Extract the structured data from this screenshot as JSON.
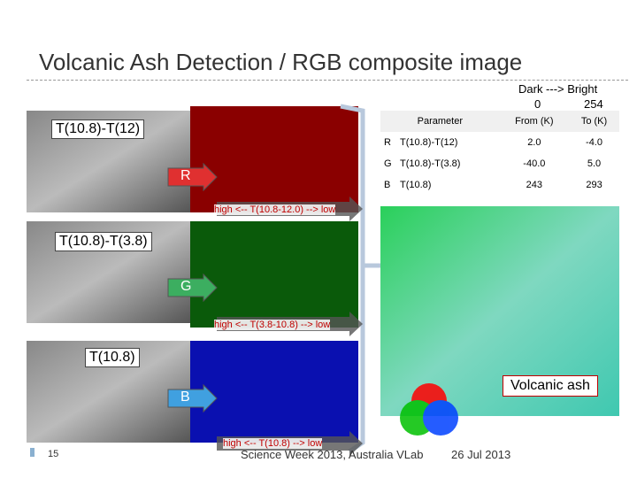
{
  "title": "Volcanic Ash Detection / RGB composite image",
  "scale": {
    "caption": "Dark ---> Bright",
    "min": "0",
    "max": "254"
  },
  "channels": [
    {
      "label": "T(10.8)-T(12)",
      "arrow": "R",
      "caption": "high <-- T(10.8-12.0) --> low"
    },
    {
      "label": "T(10.8)-T(3.8)",
      "arrow": "G",
      "caption": "high <-- T(3.8-10.8) --> low"
    },
    {
      "label": "T(10.8)",
      "arrow": "B",
      "caption": "high <-- T(10.8) --> low"
    }
  ],
  "table": {
    "header": [
      "Parameter",
      "From (K)",
      "To (K)"
    ],
    "rows": [
      [
        "R",
        "T(10.8)-T(12)",
        "2.0",
        "-4.0"
      ],
      [
        "G",
        "T(10.8)-T(3.8)",
        "-40.0",
        "5.0"
      ],
      [
        "B",
        "T(10.8)",
        "243",
        "293"
      ]
    ]
  },
  "annotation": "Volcanic ash",
  "footer": {
    "event": "Science Week 2013, Australia VLab",
    "date": "26 Jul 2013",
    "page": "15"
  }
}
